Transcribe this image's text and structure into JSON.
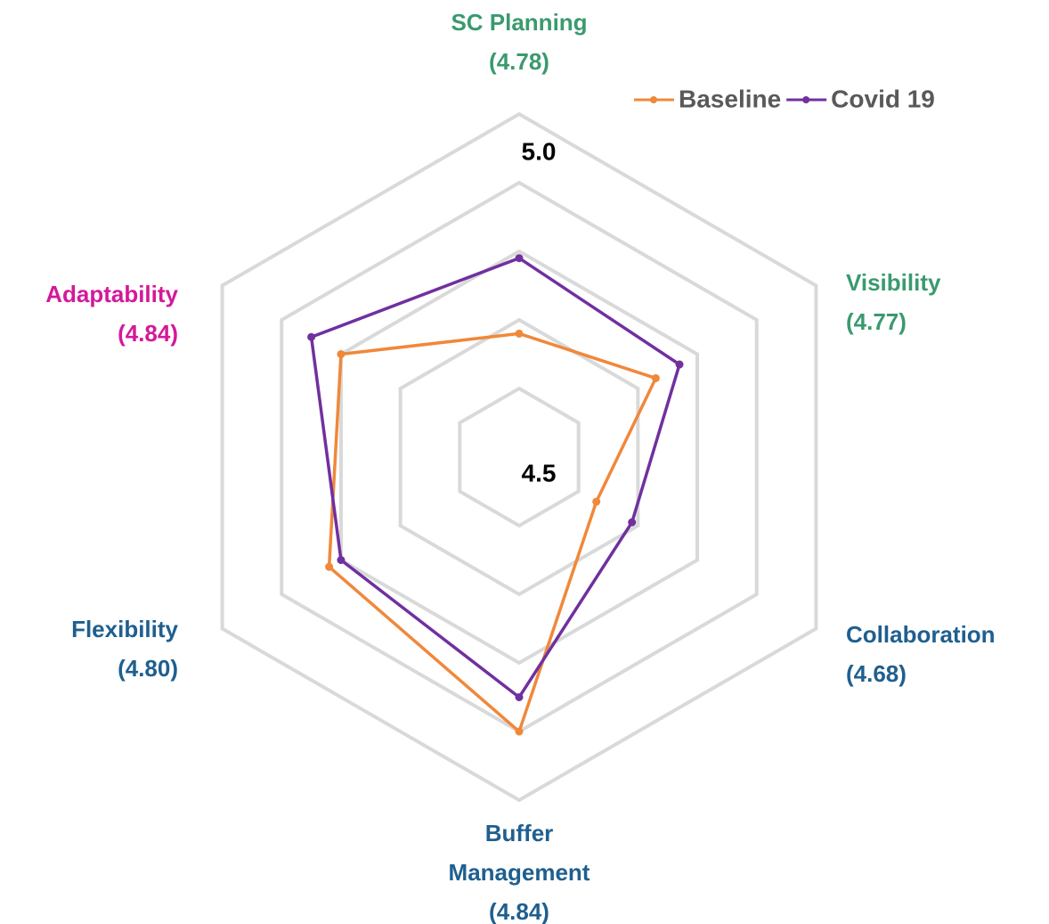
{
  "chart_data": {
    "type": "radar",
    "categories": [
      "SC Planning",
      "Visibility",
      "Collaboration",
      "Buffer Management",
      "Flexibility",
      "Adaptability"
    ],
    "category_scores": [
      4.78,
      4.77,
      4.68,
      4.84,
      4.8,
      4.84
    ],
    "category_score_labels": [
      "(4.78)",
      "(4.77)",
      "(4.68)",
      "(4.84)",
      "(4.80)",
      "(4.84)"
    ],
    "category_colors": [
      "#3a9a6e",
      "#3a9a6e",
      "#1f5f8f",
      "#1f5f8f",
      "#1f5f8f",
      "#d4199a"
    ],
    "series": [
      {
        "name": "Baseline",
        "color": "#f0883a",
        "values": [
          4.68,
          4.73,
          4.63,
          4.9,
          4.82,
          4.8
        ]
      },
      {
        "name": "Covid 19",
        "color": "#7030a0",
        "values": [
          4.79,
          4.77,
          4.69,
          4.85,
          4.8,
          4.85
        ]
      }
    ],
    "rlim": [
      4.5,
      5.0
    ],
    "rticks": [
      4.5,
      {
        "value": 4.6,
        "label": null
      },
      {
        "value": 4.7,
        "label": null
      },
      {
        "value": 4.8,
        "label": null
      },
      {
        "value": 4.9,
        "label": null
      },
      {
        "value": 5.0,
        "label": "5.0"
      }
    ],
    "grid": true,
    "legend": "top-right"
  }
}
